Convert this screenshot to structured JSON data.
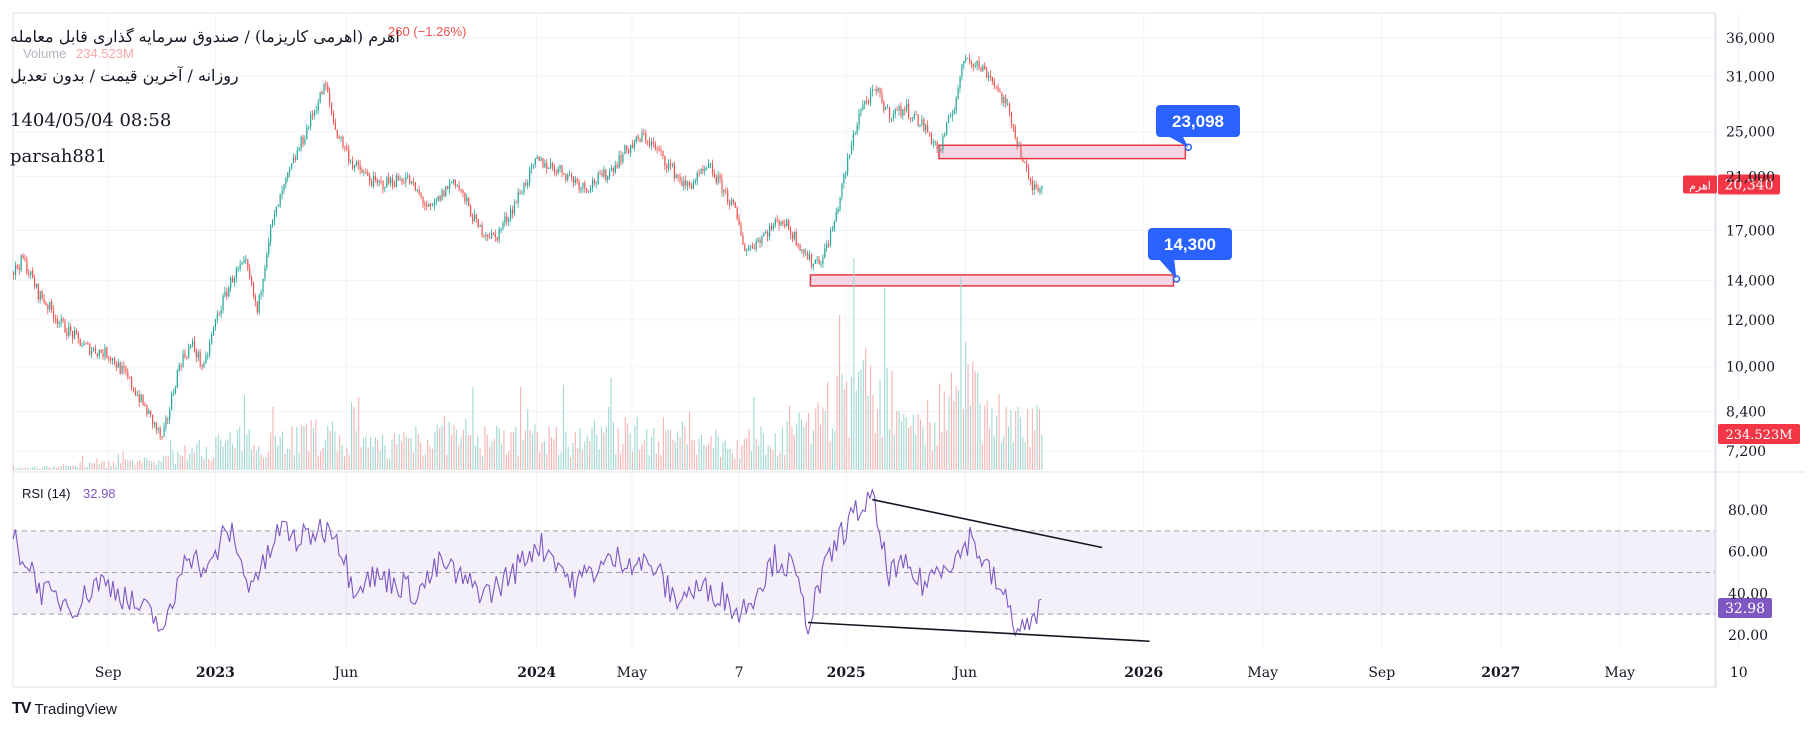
{
  "header": {
    "title": "اهرم (اهرمی کاریزما) / صندوق سرمایه گذاری قابل معامله",
    "subtitle": "روزانه / آخرین قیمت / بدون تعدیل",
    "change_text": "260 (−1.26%)",
    "volume_label": "Volume",
    "volume_value": "234.523M",
    "datetime": "1404/05/04 08:58",
    "author": "parsah881"
  },
  "brand": {
    "name": "TradingView",
    "logo_icon": "tradingview-logo-icon"
  },
  "colors": {
    "up": "#26a69a",
    "down": "#ef5350",
    "rsi": "#7e57c2",
    "callout": "#2962ff",
    "zone_fill": "#f3c9d9",
    "zone_stroke": "#e53945",
    "price_badge": "#f23645"
  },
  "chart_data": [
    {
      "type": "candlestick",
      "title": "",
      "scale": "log",
      "ylim": [
        6500,
        38000
      ],
      "y_ticks": [
        "36,000",
        "31,000",
        "25,000",
        "21,000",
        "17,000",
        "14,000",
        "12,000",
        "10,000",
        "8,400",
        "7,200"
      ],
      "y_tick_values": [
        36000,
        31000,
        25000,
        21000,
        17000,
        14000,
        12000,
        10000,
        8400,
        7200
      ],
      "x_ticks": [
        "Sep",
        "2023",
        "Jun",
        "2024",
        "May",
        "7",
        "2025",
        "Jun",
        "2026",
        "May",
        "Sep",
        "2027",
        "May",
        "10"
      ],
      "x_tick_bold": [
        false,
        true,
        false,
        true,
        false,
        false,
        true,
        false,
        true,
        false,
        false,
        true,
        false,
        false
      ],
      "x_tick_index": [
        80,
        170,
        280,
        440,
        520,
        610,
        700,
        800,
        950,
        1050,
        1150,
        1250,
        1350,
        1450
      ],
      "x_range": [
        0,
        1430
      ],
      "last_price": {
        "label": "20,340",
        "value": 20340,
        "tag": "اهرم"
      },
      "price_path": [
        [
          0,
          14500
        ],
        [
          8,
          15200
        ],
        [
          20,
          13400
        ],
        [
          40,
          11800
        ],
        [
          60,
          10800
        ],
        [
          80,
          10500
        ],
        [
          95,
          9600
        ],
        [
          115,
          8200
        ],
        [
          125,
          7500
        ],
        [
          130,
          8300
        ],
        [
          140,
          10200
        ],
        [
          150,
          10900
        ],
        [
          160,
          9900
        ],
        [
          170,
          12000
        ],
        [
          185,
          14300
        ],
        [
          195,
          14900
        ],
        [
          205,
          12300
        ],
        [
          215,
          16800
        ],
        [
          230,
          20800
        ],
        [
          245,
          24800
        ],
        [
          262,
          30000
        ],
        [
          270,
          25300
        ],
        [
          285,
          22000
        ],
        [
          305,
          20300
        ],
        [
          330,
          20900
        ],
        [
          350,
          18300
        ],
        [
          370,
          20800
        ],
        [
          390,
          17200
        ],
        [
          405,
          16500
        ],
        [
          420,
          18700
        ],
        [
          440,
          22300
        ],
        [
          460,
          21500
        ],
        [
          480,
          20100
        ],
        [
          500,
          21300
        ],
        [
          515,
          23300
        ],
        [
          530,
          24600
        ],
        [
          550,
          22000
        ],
        [
          565,
          20100
        ],
        [
          585,
          21700
        ],
        [
          605,
          18600
        ],
        [
          615,
          15700
        ],
        [
          630,
          16700
        ],
        [
          645,
          17800
        ],
        [
          658,
          16400
        ],
        [
          670,
          15000
        ],
        [
          680,
          15300
        ],
        [
          690,
          17600
        ],
        [
          700,
          21800
        ],
        [
          712,
          27500
        ],
        [
          725,
          29300
        ],
        [
          735,
          26800
        ],
        [
          750,
          27300
        ],
        [
          765,
          25500
        ],
        [
          778,
          23100
        ],
        [
          790,
          27500
        ],
        [
          800,
          33700
        ],
        [
          810,
          32400
        ],
        [
          820,
          31200
        ],
        [
          835,
          27300
        ],
        [
          848,
          22300
        ],
        [
          855,
          20100
        ],
        [
          865,
          20400
        ]
      ],
      "volume_spikes": [
        [
          0,
          5
        ],
        [
          120,
          30
        ],
        [
          175,
          90
        ],
        [
          230,
          110
        ],
        [
          260,
          115
        ],
        [
          300,
          80
        ],
        [
          360,
          120
        ],
        [
          420,
          100
        ],
        [
          460,
          110
        ],
        [
          540,
          120
        ],
        [
          600,
          90
        ],
        [
          640,
          100
        ],
        [
          690,
          200
        ],
        [
          715,
          300
        ],
        [
          740,
          210
        ],
        [
          770,
          160
        ],
        [
          800,
          280
        ],
        [
          820,
          200
        ],
        [
          850,
          150
        ],
        [
          865,
          130
        ]
      ],
      "zones": [
        {
          "label": "23,098",
          "value": 23098,
          "x_start": 778,
          "x_end": 985,
          "y_low": 22500,
          "y_high": 23700
        },
        {
          "label": "14,300",
          "value": 14300,
          "x_start": 670,
          "x_end": 975,
          "y_low": 13700,
          "y_high": 14300
        }
      ],
      "volume_badge": "234.523M"
    },
    {
      "type": "line",
      "title": "",
      "indicator": "RSI",
      "period_label": "RSI (14)",
      "value_label": "32.98",
      "last_value": 32.98,
      "ylim": [
        10,
        95
      ],
      "y_ticks": [
        "80.00",
        "60.00",
        "40.00",
        "20.00"
      ],
      "y_tick_values": [
        80,
        60,
        40,
        20
      ],
      "band": [
        30,
        70
      ],
      "mid": 50,
      "series": [
        {
          "values": [
            [
              0,
              66
            ],
            [
              15,
              52
            ],
            [
              25,
              40
            ],
            [
              40,
              37
            ],
            [
              55,
              34
            ],
            [
              70,
              46
            ],
            [
              85,
              43
            ],
            [
              100,
              35
            ],
            [
              115,
              30
            ],
            [
              128,
              22
            ],
            [
              135,
              36
            ],
            [
              145,
              62
            ],
            [
              155,
              55
            ],
            [
              165,
              50
            ],
            [
              175,
              66
            ],
            [
              185,
              70
            ],
            [
              195,
              45
            ],
            [
              210,
              52
            ],
            [
              225,
              72
            ],
            [
              240,
              65
            ],
            [
              255,
              70
            ],
            [
              270,
              72
            ],
            [
              285,
              44
            ],
            [
              300,
              48
            ],
            [
              320,
              46
            ],
            [
              340,
              40
            ],
            [
              360,
              55
            ],
            [
              380,
              45
            ],
            [
              400,
              40
            ],
            [
              420,
              50
            ],
            [
              440,
              64
            ],
            [
              455,
              58
            ],
            [
              470,
              44
            ],
            [
              490,
              52
            ],
            [
              510,
              57
            ],
            [
              525,
              55
            ],
            [
              540,
              52
            ],
            [
              555,
              37
            ],
            [
              575,
              42
            ],
            [
              595,
              40
            ],
            [
              610,
              30
            ],
            [
              625,
              42
            ],
            [
              640,
              57
            ],
            [
              655,
              52
            ],
            [
              668,
              26
            ],
            [
              680,
              48
            ],
            [
              695,
              68
            ],
            [
              710,
              80
            ],
            [
              722,
              85
            ],
            [
              735,
              50
            ],
            [
              750,
              52
            ],
            [
              765,
              44
            ],
            [
              780,
              54
            ],
            [
              795,
              58
            ],
            [
              805,
              68
            ],
            [
              815,
              55
            ],
            [
              830,
              41
            ],
            [
              845,
              22
            ],
            [
              855,
              25
            ],
            [
              865,
              33
            ]
          ]
        }
      ],
      "trendlines": [
        {
          "x1": 722,
          "y1": 85,
          "x2": 915,
          "y2": 62
        },
        {
          "x1": 668,
          "y1": 26,
          "x2": 955,
          "y2": 17
        }
      ]
    }
  ]
}
